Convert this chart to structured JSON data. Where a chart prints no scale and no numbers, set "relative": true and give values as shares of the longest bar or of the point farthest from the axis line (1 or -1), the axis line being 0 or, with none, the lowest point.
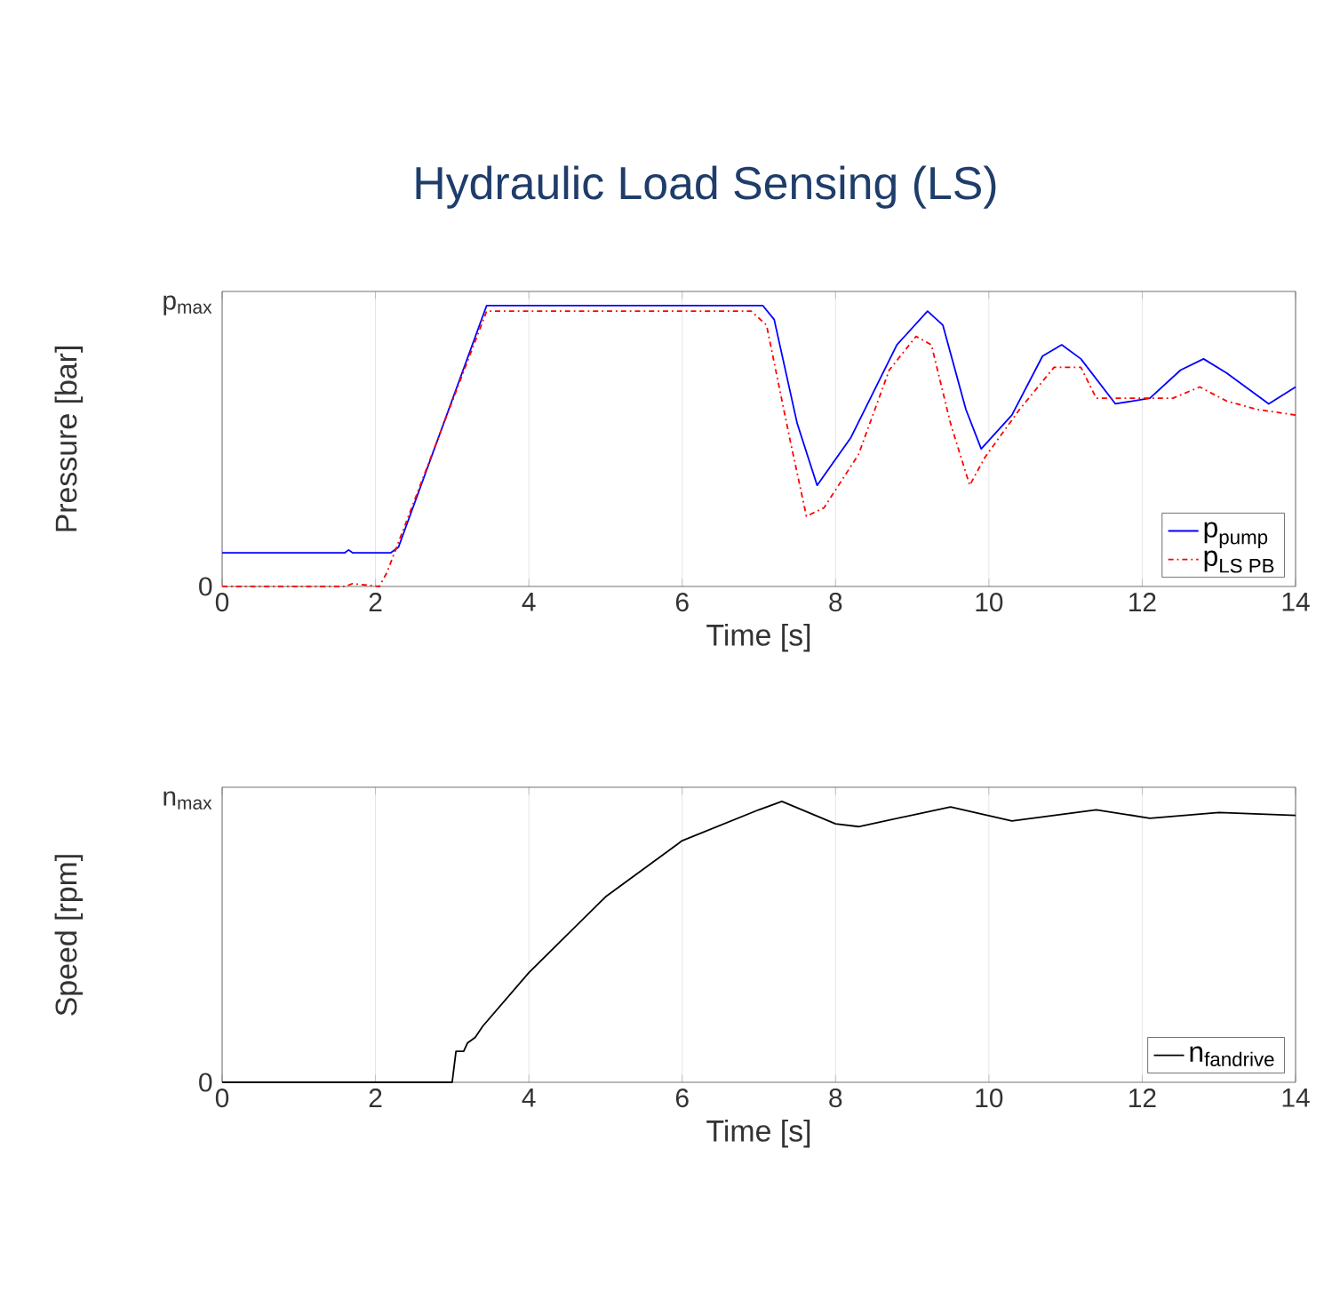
{
  "chart_data": [
    {
      "type": "line",
      "title": "Hydraulic Load Sensing (LS)",
      "xlabel": "Time [s]",
      "ylabel": "Pressure [bar]",
      "xlim": [
        0,
        14
      ],
      "xticks": [
        0,
        2,
        4,
        6,
        8,
        10,
        12,
        14
      ],
      "relative": true,
      "annotations": [
        "0",
        "p$_{max}$"
      ],
      "grid": "x",
      "legend": "bottom right",
      "series": [
        {
          "name": "\\text{p}_{\\text{pump}}",
          "color": "#0000ff",
          "line_style": "solid",
          "x": [
            0,
            1.6,
            1.65,
            1.7,
            2.2,
            2.3,
            3.45,
            7.05,
            7.2,
            7.5,
            7.76,
            8.2,
            8.8,
            9.2,
            9.4,
            9.7,
            9.9,
            10.3,
            10.7,
            10.95,
            11.2,
            11.65,
            12.1,
            12.5,
            12.8,
            13.1,
            13.65,
            14
          ],
          "values": [
            0.12,
            0.12,
            0.13,
            0.12,
            0.12,
            0.14,
            1,
            1,
            0.95,
            0.58,
            0.36,
            0.53,
            0.86,
            0.98,
            0.93,
            0.63,
            0.49,
            0.61,
            0.82,
            0.86,
            0.81,
            0.65,
            0.67,
            0.77,
            0.81,
            0.76,
            0.65,
            0.71
          ]
        },
        {
          "name": "\\text{p}_{\\text{LS PB}}",
          "color": "#ff0000",
          "line_style": "dashdot",
          "x": [
            0,
            1.6,
            1.7,
            2.05,
            2.15,
            3.45,
            6.9,
            7.1,
            7.4,
            7.62,
            7.85,
            8.3,
            8.7,
            9.05,
            9.25,
            9.5,
            9.75,
            9.95,
            10.4,
            10.85,
            11.2,
            11.4,
            12.4,
            12.75,
            13.1,
            13.5,
            14
          ],
          "values": [
            0,
            0,
            0.01,
            0,
            0.05,
            0.98,
            0.98,
            0.93,
            0.53,
            0.25,
            0.28,
            0.47,
            0.77,
            0.89,
            0.86,
            0.58,
            0.36,
            0.46,
            0.63,
            0.78,
            0.78,
            0.67,
            0.67,
            0.71,
            0.66,
            0.63,
            0.61
          ]
        }
      ]
    },
    {
      "type": "line",
      "xlabel": "Time [s]",
      "ylabel": "Speed [rpm]",
      "xlim": [
        0,
        14
      ],
      "xticks": [
        0,
        2,
        4,
        6,
        8,
        10,
        12,
        14
      ],
      "relative": true,
      "annotations": [
        "0",
        "n$_{max}$"
      ],
      "grid": "x",
      "legend": "bottom right",
      "series": [
        {
          "name": "\\text{n}_{\\text{fandrive}}",
          "color": "#000000",
          "line_style": "solid",
          "x": [
            0,
            2.95,
            3.0,
            3.05,
            3.15,
            3.2,
            3.3,
            3.4,
            4,
            5,
            6,
            7,
            7.3,
            8,
            8.3,
            9.5,
            10.3,
            11.4,
            12.1,
            13,
            14
          ],
          "values": [
            0,
            0,
            0,
            0.11,
            0.11,
            0.14,
            0.16,
            0.2,
            0.39,
            0.66,
            0.86,
            0.97,
            1,
            0.92,
            0.91,
            0.98,
            0.93,
            0.97,
            0.94,
            0.96,
            0.95
          ]
        }
      ]
    }
  ]
}
